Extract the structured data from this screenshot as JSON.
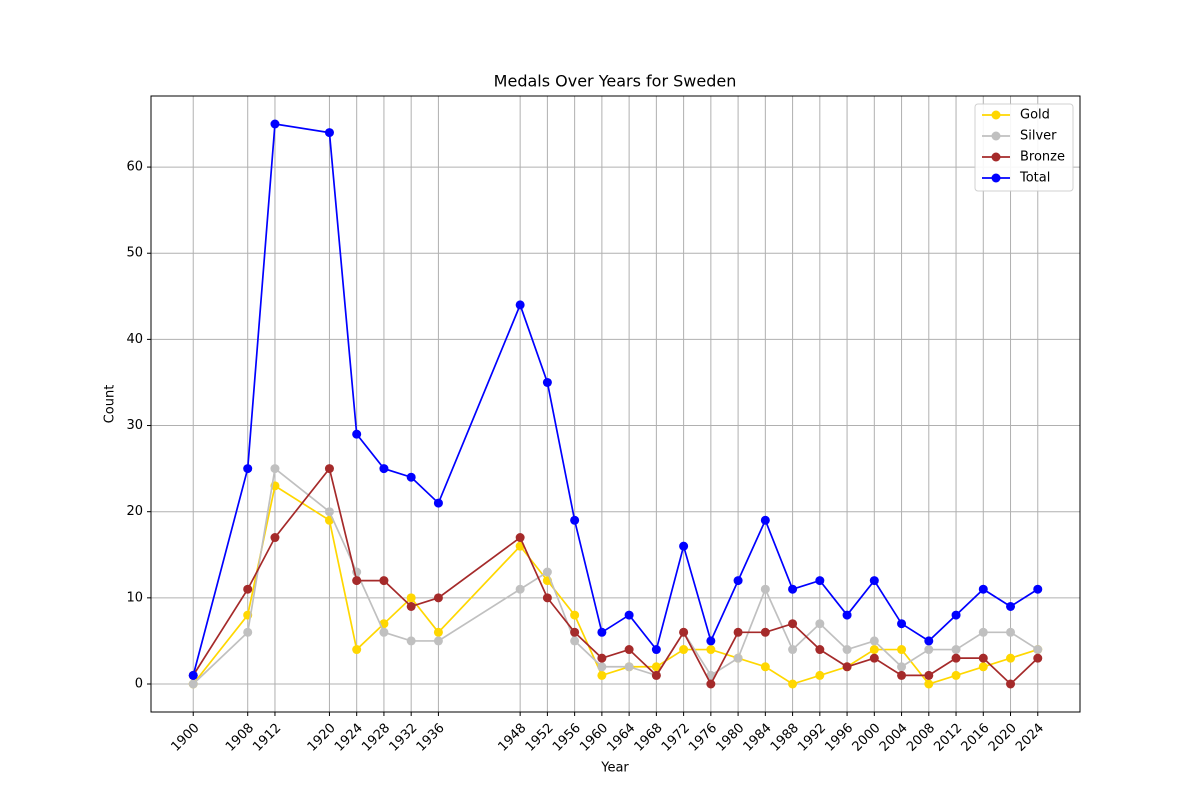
{
  "chart_data": {
    "type": "line",
    "title": "Medals Over Years for Sweden",
    "x_label": "Year",
    "y_label": "Count",
    "x": [
      1900,
      1908,
      1912,
      1920,
      1924,
      1928,
      1932,
      1936,
      1948,
      1952,
      1956,
      1960,
      1964,
      1968,
      1972,
      1976,
      1980,
      1984,
      1988,
      1992,
      1996,
      2000,
      2004,
      2008,
      2012,
      2016,
      2020,
      2024
    ],
    "series": [
      {
        "name": "Gold",
        "color": "#ffd700",
        "values": [
          0,
          8,
          23,
          19,
          4,
          7,
          10,
          6,
          16,
          12,
          8,
          1,
          2,
          2,
          4,
          4,
          3,
          2,
          0,
          1,
          2,
          4,
          4,
          0,
          1,
          2,
          3,
          4
        ]
      },
      {
        "name": "Silver",
        "color": "#c0c0c0",
        "values": [
          0,
          6,
          25,
          20,
          13,
          6,
          5,
          5,
          11,
          13,
          5,
          2,
          2,
          1,
          6,
          1,
          3,
          11,
          4,
          7,
          4,
          5,
          2,
          4,
          4,
          6,
          6,
          4
        ]
      },
      {
        "name": "Bronze",
        "color": "#a52a2a",
        "values": [
          1,
          11,
          17,
          25,
          12,
          12,
          9,
          10,
          17,
          10,
          6,
          3,
          4,
          1,
          6,
          0,
          6,
          6,
          7,
          4,
          2,
          3,
          1,
          1,
          3,
          3,
          0,
          3
        ]
      },
      {
        "name": "Total",
        "color": "#0000ff",
        "values": [
          1,
          25,
          65,
          64,
          29,
          25,
          24,
          21,
          44,
          35,
          19,
          6,
          8,
          4,
          16,
          5,
          12,
          19,
          11,
          12,
          8,
          12,
          7,
          5,
          8,
          11,
          9,
          11
        ]
      }
    ],
    "xlim": [
      1893.8,
      2030.2
    ],
    "ylim": [
      -3.25,
      68.25
    ],
    "xticks": [
      1900,
      1908,
      1912,
      1920,
      1924,
      1928,
      1932,
      1936,
      1948,
      1952,
      1956,
      1960,
      1964,
      1968,
      1972,
      1976,
      1980,
      1984,
      1988,
      1992,
      1996,
      2000,
      2004,
      2008,
      2012,
      2016,
      2020,
      2024
    ],
    "yticks": [
      0,
      10,
      20,
      30,
      40,
      50,
      60
    ],
    "grid": true,
    "legend": "upper right"
  }
}
